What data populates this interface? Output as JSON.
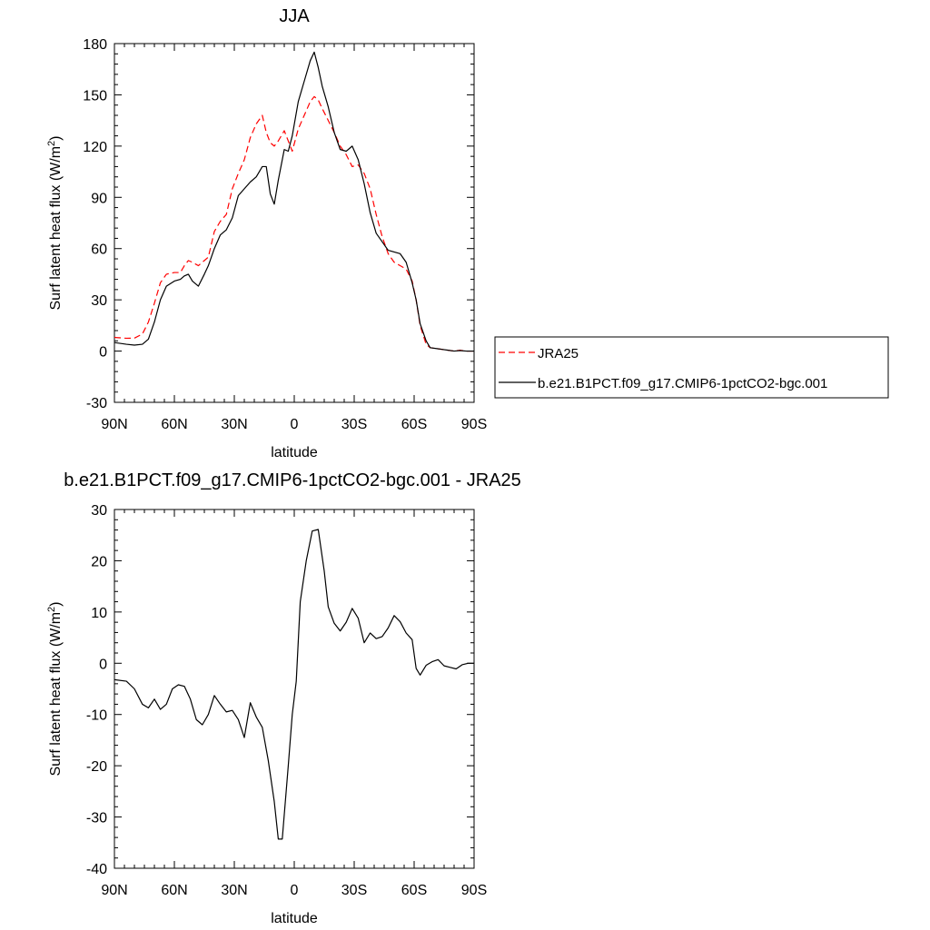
{
  "chart_data": [
    {
      "type": "line",
      "title": "JJA",
      "xlabel": "latitude",
      "ylabel": "Surf latent heat flux (W/m",
      "ylabel_sup": "2",
      "ylabel_close": ")",
      "xlim": [
        90,
        -90
      ],
      "ylim": [
        -30,
        180
      ],
      "xticks": [
        {
          "value": 90,
          "label": "90N"
        },
        {
          "value": 60,
          "label": "60N"
        },
        {
          "value": 30,
          "label": "30N"
        },
        {
          "value": 0,
          "label": "0"
        },
        {
          "value": -30,
          "label": "30S"
        },
        {
          "value": -60,
          "label": "60S"
        },
        {
          "value": -90,
          "label": "90S"
        }
      ],
      "yticks": [
        -30,
        0,
        30,
        60,
        90,
        120,
        150,
        180
      ],
      "legend": {
        "placement": "outside-right-bottom"
      },
      "series": [
        {
          "name": "JRA25",
          "color": "#ff0000",
          "dash": true,
          "x": [
            90,
            84,
            80,
            76,
            73,
            70,
            67,
            64,
            60,
            57,
            55,
            53,
            51,
            48,
            45,
            43,
            40,
            37,
            34,
            31,
            28,
            25,
            22,
            19,
            16,
            14,
            12,
            10,
            8,
            5,
            3,
            1,
            -2,
            -5,
            -8,
            -10,
            -12,
            -14,
            -17,
            -20,
            -23,
            -26,
            -29,
            -32,
            -35,
            -38,
            -41,
            -44,
            -47,
            -50,
            -53,
            -56,
            -59,
            -61,
            -63,
            -66,
            -68,
            -71,
            -74,
            -77,
            -80,
            -83,
            -86,
            -90
          ],
          "y": [
            8,
            7.5,
            7.6,
            10,
            17,
            28,
            40,
            45,
            46,
            46,
            50,
            53,
            52,
            50,
            53,
            55,
            70,
            76,
            80,
            95,
            104,
            112,
            125,
            133,
            138,
            128,
            122,
            120,
            123,
            129,
            123,
            117,
            130,
            138,
            146,
            149,
            147,
            142,
            135,
            128,
            120,
            115,
            108,
            109,
            104,
            95,
            80,
            67,
            57,
            52,
            50,
            48,
            41,
            30,
            15,
            4,
            2,
            1.5,
            1,
            0.5,
            0,
            0.5,
            0,
            0
          ]
        },
        {
          "name": "b.e21.B1PCT.f09_g17.CMIP6-1pctCO2-bgc.001",
          "color": "#000000",
          "dash": false,
          "x": [
            90,
            84,
            80,
            76,
            73,
            70,
            67,
            64,
            60,
            57,
            55,
            53,
            51,
            48,
            45,
            43,
            40,
            37,
            34,
            31,
            28,
            25,
            22,
            19,
            16,
            14,
            12,
            10,
            8,
            5,
            3,
            1,
            -2,
            -5,
            -8,
            -10,
            -12,
            -14,
            -17,
            -20,
            -23,
            -26,
            -29,
            -32,
            -35,
            -38,
            -41,
            -44,
            -47,
            -50,
            -53,
            -56,
            -59,
            -61,
            -63,
            -66,
            -68,
            -71,
            -74,
            -77,
            -80,
            -83,
            -86,
            -90
          ],
          "y": [
            5,
            4,
            3.5,
            4,
            7,
            17,
            30,
            38,
            41,
            42,
            44,
            45,
            41,
            38,
            45,
            50,
            60,
            68,
            71,
            78,
            91,
            95,
            99,
            102,
            108,
            108,
            92,
            86,
            100,
            118,
            117,
            126,
            146,
            158,
            170,
            175,
            166,
            155,
            143,
            128,
            118,
            117,
            120,
            112,
            98,
            81,
            69,
            64,
            59,
            58,
            57,
            52,
            40,
            30,
            16,
            6,
            2,
            1.5,
            1,
            0.5,
            0,
            0.3,
            0,
            0
          ]
        }
      ]
    },
    {
      "type": "line",
      "title": "b.e21.B1PCT.f09_g17.CMIP6-1pctCO2-bgc.001 - JRA25",
      "xlabel": "latitude",
      "ylabel": "Surf latent heat flux (W/m",
      "ylabel_sup": "2",
      "ylabel_close": ")",
      "xlim": [
        90,
        -90
      ],
      "ylim": [
        -40,
        30
      ],
      "xticks": [
        {
          "value": 90,
          "label": "90N"
        },
        {
          "value": 60,
          "label": "60N"
        },
        {
          "value": 30,
          "label": "30N"
        },
        {
          "value": 0,
          "label": "0"
        },
        {
          "value": -30,
          "label": "30S"
        },
        {
          "value": -60,
          "label": "60S"
        },
        {
          "value": -90,
          "label": "90S"
        }
      ],
      "yticks": [
        -40,
        -30,
        -20,
        -10,
        0,
        10,
        20,
        30
      ],
      "series": [
        {
          "color": "#000000",
          "dash": false,
          "x": [
            90,
            84,
            80,
            76,
            73,
            70,
            67,
            64,
            61,
            58,
            55,
            52,
            49,
            46,
            43,
            40,
            37,
            34,
            31,
            28,
            25,
            22,
            19,
            16,
            13,
            10,
            8,
            6,
            3,
            1,
            -1,
            -3,
            -6,
            -9,
            -12,
            -15,
            -17,
            -20,
            -23,
            -26,
            -29,
            -32,
            -35,
            -38,
            -41,
            -44,
            -47,
            -50,
            -53,
            -56,
            -59,
            -61,
            -63,
            -66,
            -69,
            -72,
            -75,
            -78,
            -81,
            -84,
            -87,
            -90
          ],
          "y": [
            -3.2,
            -3.5,
            -5,
            -8,
            -8.7,
            -7,
            -9,
            -8,
            -5,
            -4.2,
            -4.5,
            -7,
            -11,
            -12,
            -10,
            -6.3,
            -8,
            -9.5,
            -9.2,
            -11,
            -14.5,
            -7.7,
            -10.5,
            -12.5,
            -19,
            -27,
            -34.3,
            -34.3,
            -20,
            -10,
            -3.5,
            12,
            20,
            25.8,
            26.1,
            18,
            11,
            7.8,
            6.3,
            8,
            10.7,
            8.8,
            4,
            5.9,
            4.8,
            5.2,
            6.9,
            9.3,
            8.1,
            5.9,
            4.6,
            -1,
            -2.3,
            -0.4,
            0.3,
            0.7,
            -0.5,
            -0.8,
            -1.1,
            -0.3,
            0,
            0
          ]
        }
      ]
    }
  ]
}
